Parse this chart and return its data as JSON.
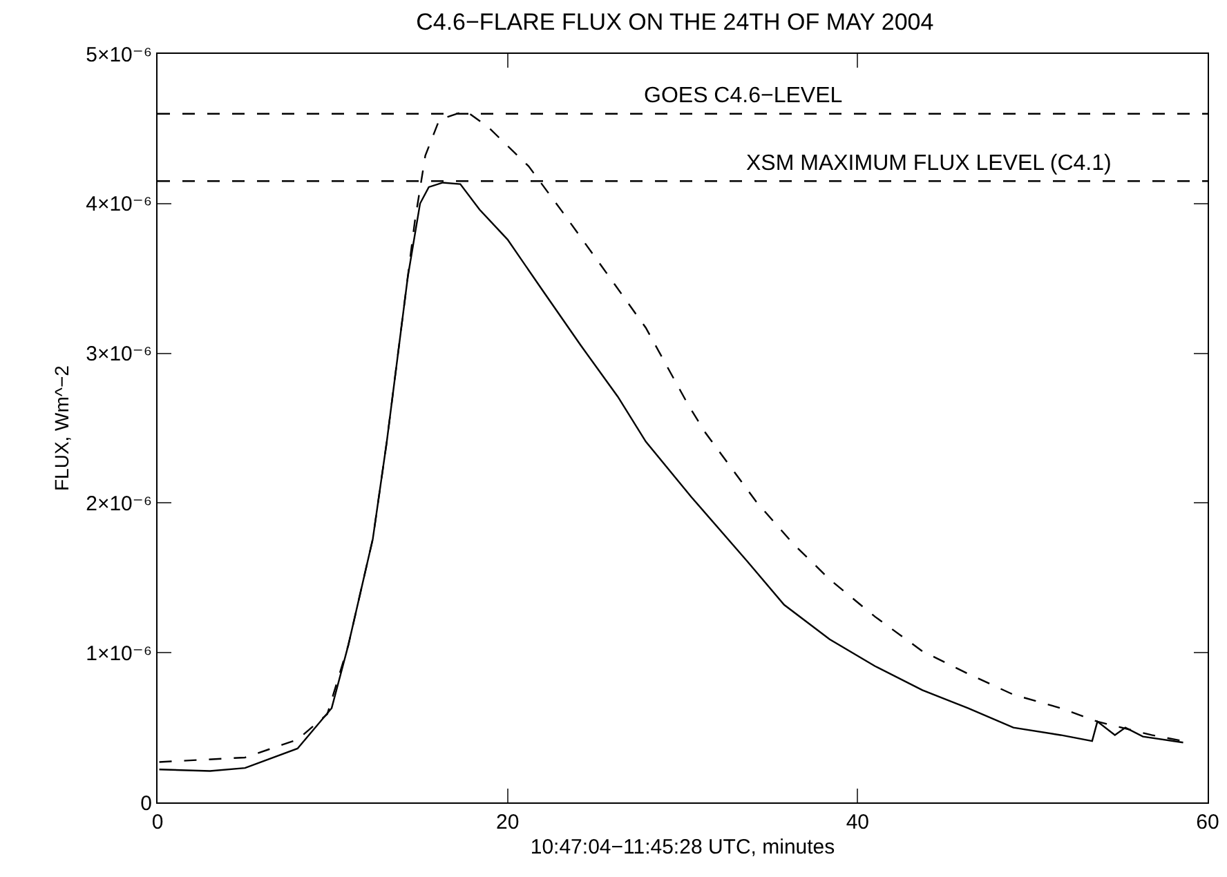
{
  "chart_data": {
    "type": "line",
    "title": "C4.6−FLARE FLUX ON THE 24TH OF MAY 2004",
    "xlabel": "10:47:04−11:45:28 UTC, minutes",
    "ylabel": "FLUX, Wm^−2",
    "xlim": [
      0,
      60
    ],
    "xticks": [
      0,
      20,
      40,
      60
    ],
    "ylim": [
      0,
      5e-06
    ],
    "yticks": [
      {
        "value": 0,
        "label": "0"
      },
      {
        "value": 1e-06,
        "label": "1×10⁻⁶"
      },
      {
        "value": 2e-06,
        "label": "2×10⁻⁶"
      },
      {
        "value": 3e-06,
        "label": "3×10⁻⁶"
      },
      {
        "value": 4e-06,
        "label": "4×10⁻⁶"
      },
      {
        "value": 5e-06,
        "label": "5×10⁻⁶"
      }
    ],
    "grid": false,
    "marker": "none",
    "series": [
      {
        "color": "#000000",
        "line_style": "solid",
        "x": [
          0.1,
          3,
          5,
          8,
          9.95,
          10.9,
          12.3,
          13.1,
          14.3,
          15.0,
          15.5,
          16.3,
          17.3,
          18.4,
          20,
          22.0,
          24.2,
          26.3,
          27.9,
          30.5,
          33.7,
          35.8,
          38.4,
          41.0,
          43.7,
          46.3,
          48.9,
          51.6,
          53.4,
          53.7,
          54.7,
          55.3,
          56.3,
          58.6
        ],
        "values": [
          2.2e-07,
          2.1e-07,
          2.3e-07,
          3.6e-07,
          6.3e-07,
          1.05e-06,
          1.76e-06,
          2.41e-06,
          3.51e-06,
          4e-06,
          4.11e-06,
          4.14e-06,
          4.13e-06,
          3.96e-06,
          3.76e-06,
          3.42e-06,
          3.05e-06,
          2.71e-06,
          2.41e-06,
          2.04e-06,
          1.61e-06,
          1.32e-06,
          1.09e-06,
          9.1e-07,
          7.5e-07,
          6.3e-07,
          5e-07,
          4.5e-07,
          4.1e-07,
          5.4e-07,
          4.5e-07,
          5e-07,
          4.4e-07,
          4e-07
        ]
      },
      {
        "color": "#000000",
        "line_style": "dashed",
        "x": [
          0.1,
          5,
          8,
          9.7,
          10.9,
          12.3,
          13.1,
          14.7,
          15.3,
          16.1,
          17.6,
          18.9,
          21.2,
          23.1,
          25.2,
          27.9,
          30.3,
          31.3,
          34.2,
          36.3,
          38.4,
          41.0,
          43.7,
          46.3,
          48.9,
          51.6,
          53.7,
          56.8,
          58.6
        ],
        "values": [
          2.7e-07,
          3e-07,
          4.2e-07,
          5.9e-07,
          1.05e-06,
          1.76e-06,
          2.41e-06,
          3.88e-06,
          4.32e-06,
          4.56e-06,
          4.62e-06,
          4.51e-06,
          4.25e-06,
          3.95e-06,
          3.61e-06,
          3.17e-06,
          2.66e-06,
          2.47e-06,
          2.01e-06,
          1.73e-06,
          1.49e-06,
          1.24e-06,
          1.01e-06,
          8.6e-07,
          7.2e-07,
          6.3e-07,
          5.4e-07,
          4.5e-07,
          4.1e-07
        ]
      }
    ],
    "ref_lines": [
      {
        "axis": "y",
        "value": 4.6e-06,
        "label": "GOES C4.6−LEVEL",
        "color": "#000000",
        "line_style": "dashed"
      },
      {
        "axis": "y",
        "value": 4.15e-06,
        "label": "XSM MAXIMUM FLUX LEVEL (C4.1)",
        "color": "#000000",
        "line_style": "dashed"
      }
    ]
  }
}
